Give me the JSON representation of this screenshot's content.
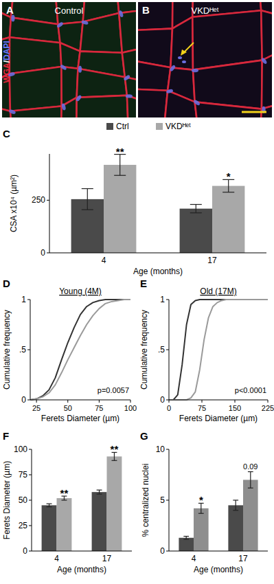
{
  "images": {
    "stain": "WGA/DAPI",
    "panels": [
      {
        "label": "A",
        "title": "Control"
      },
      {
        "label": "B",
        "title": "VKDᴴᵉᵗ"
      }
    ]
  },
  "chart_data": [
    {
      "type": "bar",
      "panel_label": "C",
      "categories": [
        "4",
        "17"
      ],
      "x_label": "Age (months)",
      "y_label": "CSA x10⁴ (µm²)",
      "ylim": [
        0,
        470
      ],
      "yticks": [
        0,
        250
      ],
      "legend": "top",
      "series": [
        {
          "name": "Ctrl",
          "color": "#4a4a4a",
          "values": [
            255,
            210
          ],
          "errors": [
            50,
            20
          ]
        },
        {
          "name": "VKDᴴᵉᵗ",
          "color": "#a8a8a8",
          "values": [
            418,
            318
          ],
          "errors": [
            50,
            30
          ],
          "annotations": [
            "**",
            "*"
          ]
        }
      ]
    },
    {
      "type": "line",
      "panel_label": "D",
      "title": "Young (4M)",
      "x_label": "Ferets Diameter (µm)",
      "y_label": "Cumulative frequency",
      "x": [
        20,
        25,
        30,
        35,
        40,
        45,
        50,
        55,
        60,
        65,
        70,
        75,
        80,
        85,
        90,
        95,
        100
      ],
      "xlim": [
        20,
        100
      ],
      "xticks": [
        25,
        50,
        75,
        100
      ],
      "ylim": [
        0,
        1
      ],
      "yticks": [
        0,
        {
          "value": 0.5,
          "label": ".5"
        },
        1
      ],
      "annotations": [
        "p=0.0057"
      ],
      "series": [
        {
          "color": "#333333",
          "values": [
            0,
            0.01,
            0.04,
            0.1,
            0.22,
            0.4,
            0.57,
            0.72,
            0.85,
            0.93,
            0.97,
            0.99,
            1,
            1,
            1,
            1,
            1
          ]
        },
        {
          "color": "#9a9a9a",
          "values": [
            0,
            0.01,
            0.03,
            0.07,
            0.15,
            0.27,
            0.4,
            0.52,
            0.64,
            0.75,
            0.84,
            0.91,
            0.96,
            0.98,
            0.99,
            1,
            1
          ]
        }
      ]
    },
    {
      "type": "line",
      "panel_label": "E",
      "title": "Old (17M)",
      "x_label": "Ferets Diameter (µm)",
      "y_label": "Cumulative frequency",
      "x": [
        0,
        10,
        20,
        30,
        40,
        50,
        60,
        70,
        80,
        90,
        100,
        110,
        120,
        130,
        140,
        150,
        225
      ],
      "xlim": [
        0,
        225
      ],
      "xticks": [
        0,
        75,
        150,
        225
      ],
      "ylim": [
        0,
        1
      ],
      "yticks": [
        0,
        {
          "value": 0.5,
          "label": ".5"
        },
        1
      ],
      "annotations": [
        "p<0.0001"
      ],
      "series": [
        {
          "color": "#333333",
          "values": [
            0,
            0,
            0.05,
            0.35,
            0.75,
            0.95,
            0.99,
            1,
            1,
            1,
            1,
            1,
            1,
            1,
            1,
            1,
            1
          ]
        },
        {
          "color": "#9a9a9a",
          "values": [
            0,
            0,
            0,
            0,
            0,
            0.02,
            0.08,
            0.3,
            0.6,
            0.82,
            0.93,
            0.97,
            0.99,
            1,
            1,
            1,
            1
          ]
        }
      ]
    },
    {
      "type": "bar",
      "panel_label": "F",
      "categories": [
        "4",
        "17"
      ],
      "x_label": "Age (months)",
      "y_label": "Ferets Diameter (µm)",
      "ylim": [
        0,
        100
      ],
      "yticks": [
        0,
        25,
        50,
        75,
        100
      ],
      "series": [
        {
          "color": "#4a4a4a",
          "values": [
            45,
            58
          ],
          "errors": [
            1.5,
            2
          ]
        },
        {
          "color": "#a8a8a8",
          "values": [
            52,
            93
          ],
          "errors": [
            2,
            4
          ],
          "annotations": [
            "**",
            "**"
          ]
        }
      ]
    },
    {
      "type": "bar",
      "panel_label": "G",
      "categories": [
        "4",
        "17"
      ],
      "x_label": "Age (months)",
      "y_label": "% centralized nuclei",
      "ylim": [
        0,
        10
      ],
      "yticks": [
        0,
        5,
        10
      ],
      "series": [
        {
          "color": "#4a4a4a",
          "values": [
            1.3,
            4.5
          ],
          "errors": [
            0.15,
            0.5
          ]
        },
        {
          "color": "#8e8e8e",
          "values": [
            4.2,
            7
          ],
          "errors": [
            0.5,
            0.8
          ],
          "annotations": [
            "*",
            "0.09"
          ]
        }
      ]
    }
  ]
}
